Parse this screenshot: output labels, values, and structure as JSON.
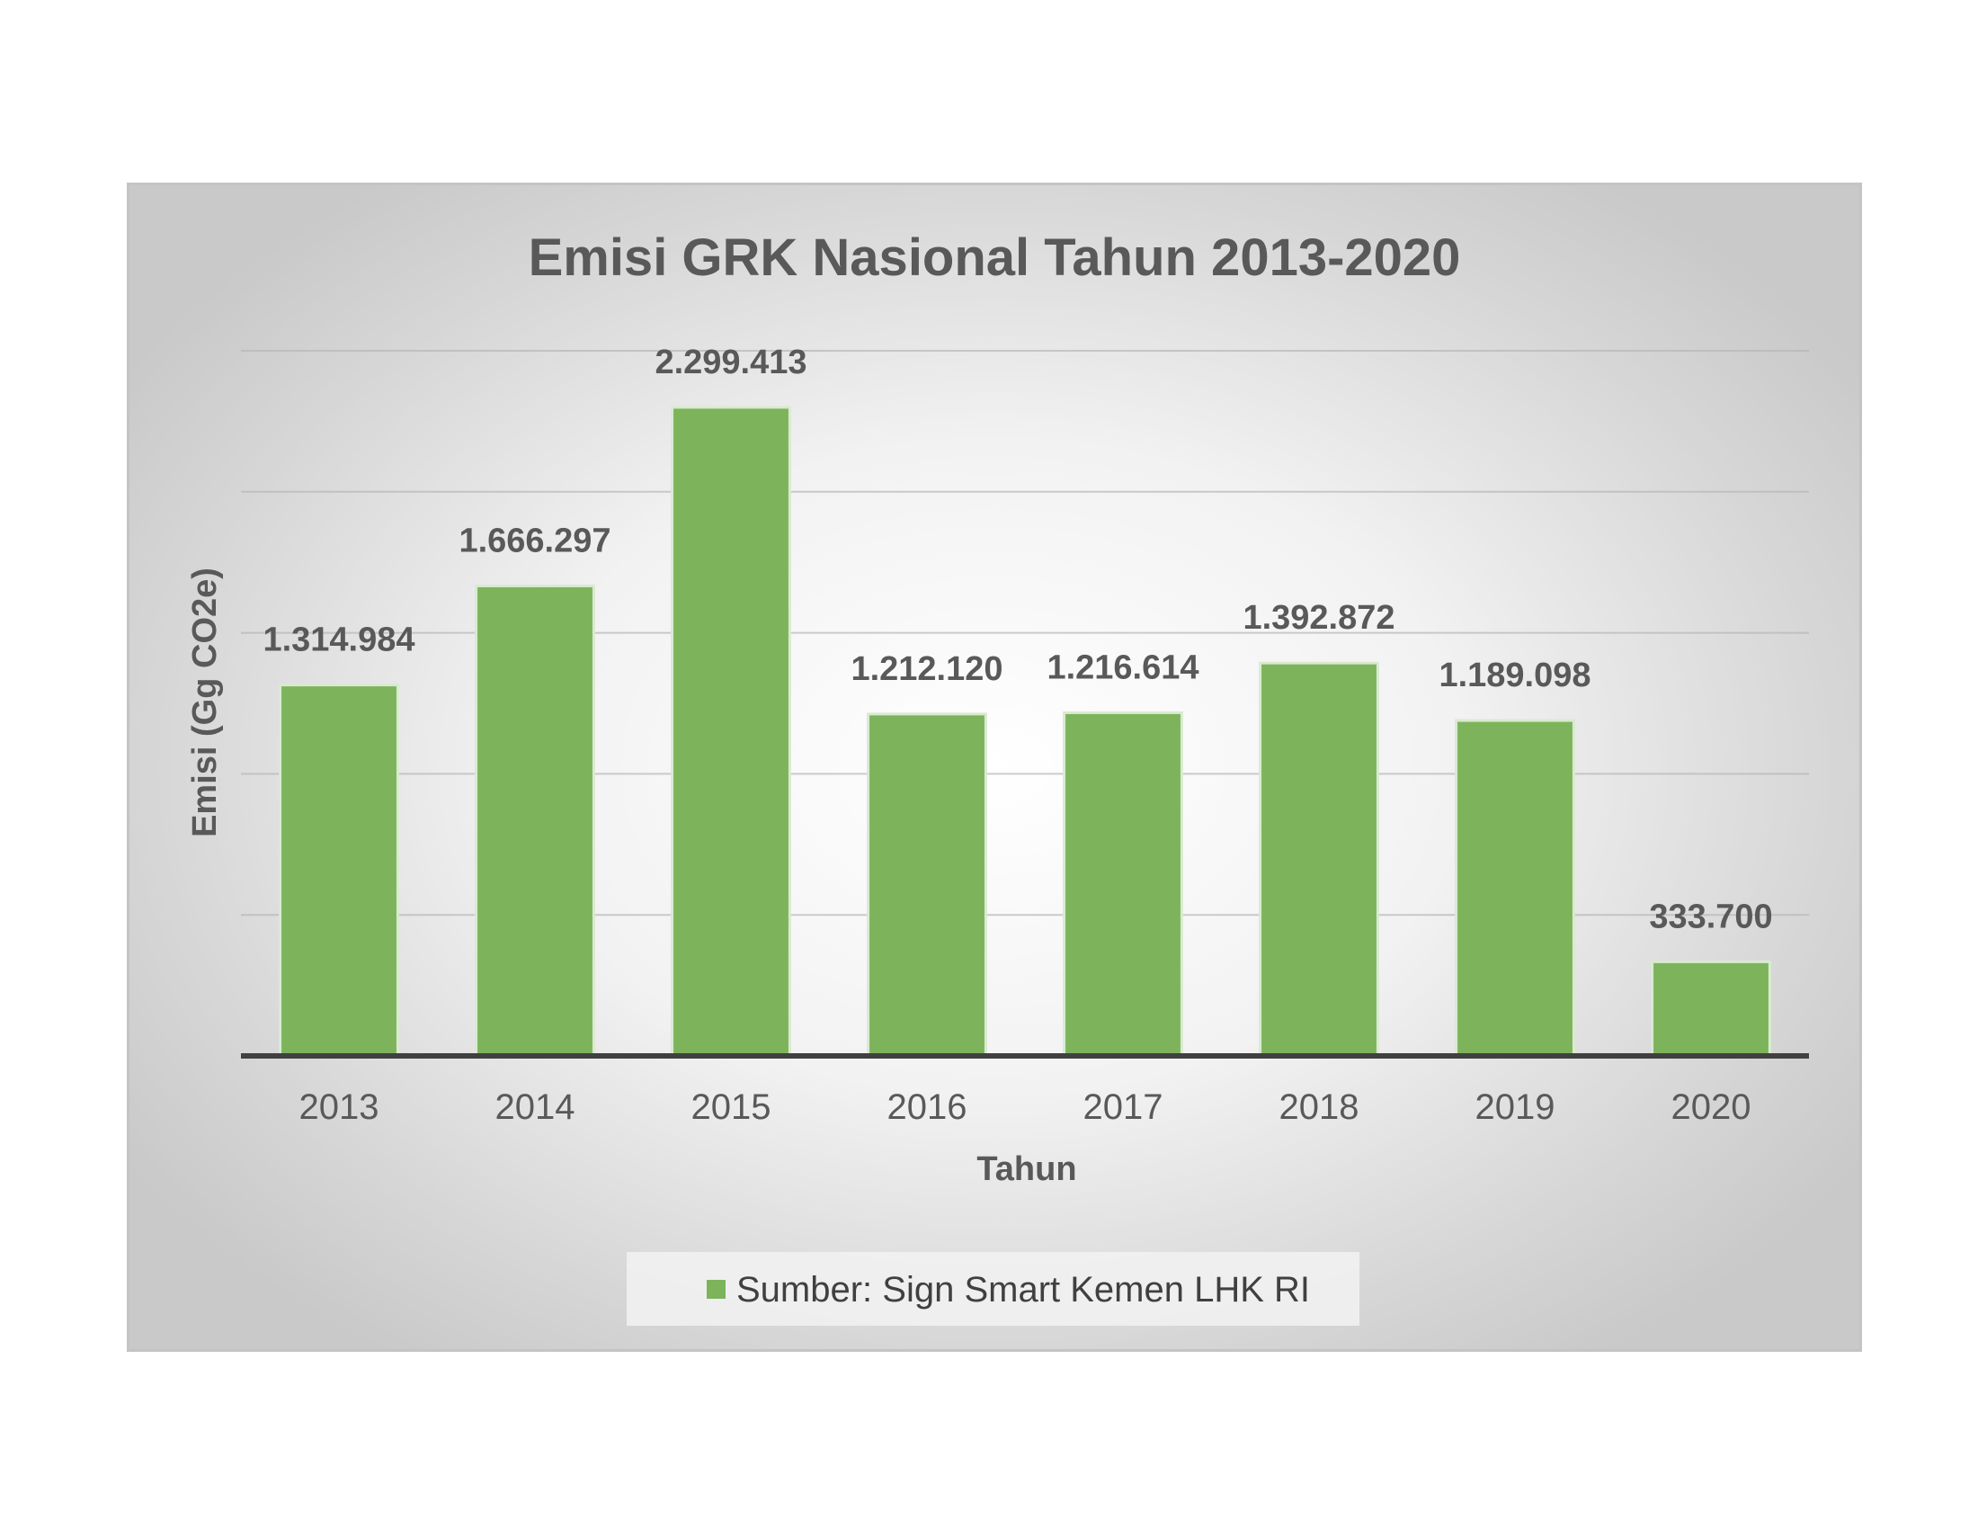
{
  "chart_data": {
    "type": "bar",
    "title": "Emisi GRK Nasional Tahun 2013-2020",
    "xlabel": "Tahun",
    "ylabel": "Emisi  (Gg CO2e)",
    "categories": [
      "2013",
      "2014",
      "2015",
      "2016",
      "2017",
      "2018",
      "2019",
      "2020"
    ],
    "series": [
      {
        "name": "Sumber:  Sign Smart Kemen LHK RI",
        "values": [
          1314984,
          1666297,
          2299413,
          1212120,
          1216614,
          1392872,
          1189098,
          333700
        ],
        "labels": [
          "1.314.984",
          "1.666.297",
          "2.299.413",
          "1.212.120",
          "1.216.614",
          "1.392.872",
          "1.189.098",
          "333.700"
        ],
        "color": "#7db35b"
      }
    ],
    "ylim": [
      0,
      2500000
    ],
    "yticks": [
      0,
      500000,
      1000000,
      1500000,
      2000000,
      2500000
    ],
    "grid": true,
    "legend_position": "bottom",
    "colors": {
      "bar": "#7db35b",
      "bar_edge": "#d9ead0",
      "gridline": "#b7b7b7",
      "baseline": "#404040",
      "text": "#595959"
    }
  }
}
